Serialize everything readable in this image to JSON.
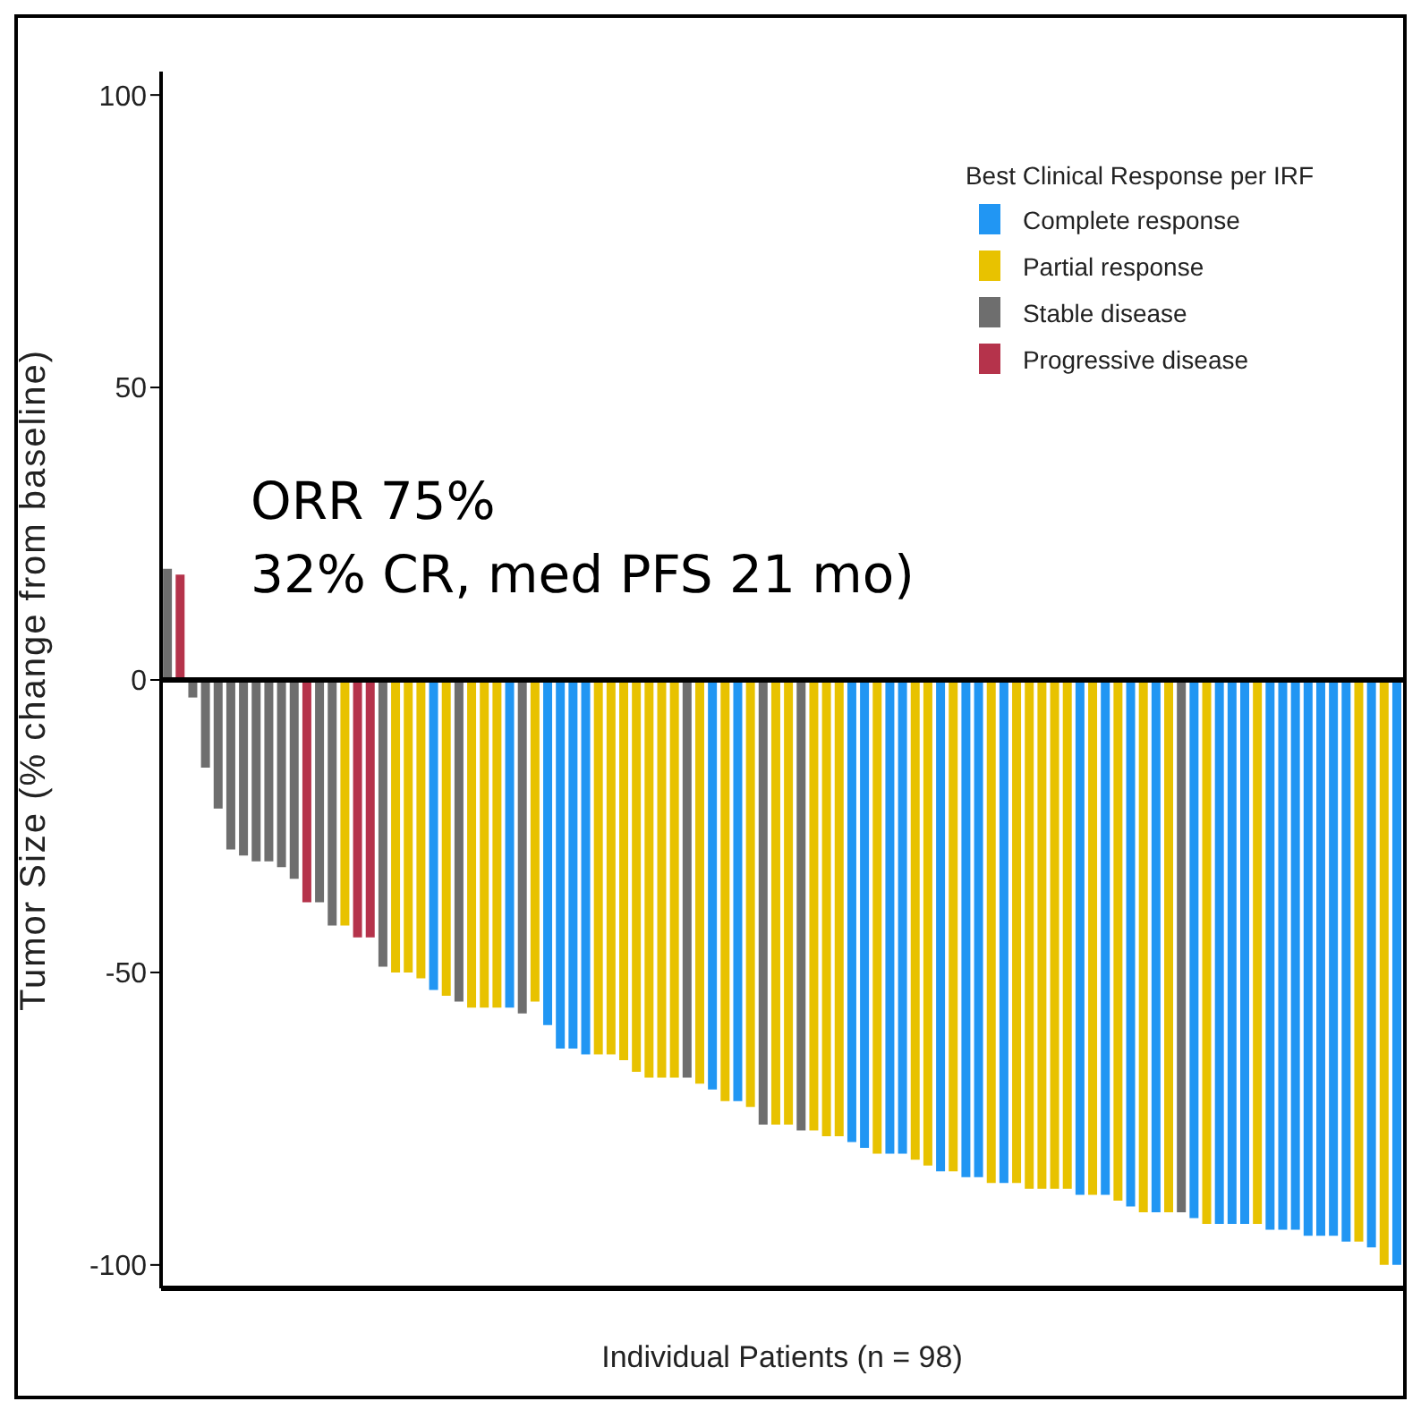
{
  "chart_data": {
    "type": "bar",
    "stacked": true,
    "ylabel": "Tumor Size (% change from baseline)",
    "xlabel": "Individual Patients (n = 98)",
    "legend_title": "Best Clinical Response per IRF",
    "legend": "top right",
    "tick_labels": "y",
    "annotations": [
      "ORR 75%",
      "32% CR, med PFS 21 mo)"
    ],
    "categories": [
      null,
      null,
      null,
      null,
      null,
      null,
      null,
      null,
      null,
      null,
      null,
      null,
      null,
      null,
      null,
      null,
      null,
      null,
      null,
      null,
      null,
      null,
      null,
      null,
      null,
      null,
      null,
      null,
      null,
      null,
      null,
      null,
      null,
      null,
      null,
      null,
      null,
      null,
      null,
      null,
      null,
      null,
      null,
      null,
      null,
      null,
      null,
      null,
      null,
      null,
      null,
      null,
      null,
      null,
      null,
      null,
      null,
      null,
      null,
      null,
      null,
      null,
      null,
      null,
      null,
      null,
      null,
      null,
      null,
      null,
      null,
      null,
      null,
      null,
      null,
      null,
      null,
      null,
      null,
      null,
      null,
      null,
      null,
      null,
      null,
      null,
      null,
      null,
      null,
      null,
      null,
      null,
      null,
      null,
      null,
      null,
      null,
      null
    ],
    "ylim": [
      -104,
      104
    ],
    "yticks": [
      -100,
      -50,
      0,
      50,
      100
    ],
    "ref_lines": [
      {
        "axis": "y",
        "value": 0,
        "color": "#000000"
      }
    ],
    "series": [
      {
        "name": "Complete response",
        "color": "#2196f3",
        "values": [
          null,
          null,
          null,
          null,
          null,
          null,
          null,
          null,
          null,
          null,
          null,
          null,
          null,
          null,
          null,
          null,
          null,
          null,
          null,
          null,
          null,
          -53,
          null,
          null,
          null,
          null,
          null,
          -56,
          null,
          null,
          -59,
          -63,
          -63,
          -64,
          null,
          null,
          null,
          null,
          null,
          null,
          null,
          null,
          null,
          -70,
          null,
          -72,
          null,
          null,
          null,
          null,
          null,
          null,
          null,
          null,
          -79,
          -80,
          null,
          -81,
          -81,
          null,
          null,
          -84,
          null,
          -85,
          -85,
          null,
          -86,
          null,
          null,
          null,
          null,
          null,
          -88,
          null,
          -88,
          null,
          -90,
          null,
          -91,
          null,
          null,
          -92,
          null,
          -93,
          -93,
          -93,
          null,
          -94,
          -94,
          -94,
          -95,
          -95,
          -95,
          -96,
          null,
          -97,
          null,
          -100
        ]
      },
      {
        "name": "Partial response",
        "color": "#e8c200",
        "values": [
          null,
          null,
          null,
          null,
          null,
          null,
          null,
          null,
          null,
          null,
          null,
          null,
          null,
          null,
          -42,
          null,
          null,
          null,
          -50,
          -50,
          -51,
          null,
          -54,
          null,
          -56,
          -56,
          -56,
          null,
          null,
          -55,
          null,
          null,
          null,
          null,
          -64,
          -64,
          -65,
          -67,
          -68,
          -68,
          -68,
          null,
          -69,
          null,
          -72,
          null,
          -73,
          null,
          -76,
          -76,
          null,
          -77,
          -78,
          -78,
          null,
          null,
          -81,
          null,
          null,
          -82,
          -83,
          null,
          -84,
          null,
          null,
          -86,
          null,
          -86,
          -87,
          -87,
          -87,
          -87,
          null,
          -88,
          null,
          -89,
          null,
          -91,
          null,
          -91,
          null,
          null,
          -93,
          null,
          null,
          null,
          -93,
          null,
          null,
          null,
          null,
          null,
          null,
          null,
          -96,
          null,
          -100,
          null
        ]
      },
      {
        "name": "Stable disease",
        "color": "#6e6e6e",
        "values": [
          19,
          null,
          -3,
          -15,
          -22,
          -29,
          -30,
          -31,
          -31,
          -32,
          -34,
          null,
          -38,
          -42,
          null,
          null,
          null,
          -49,
          null,
          null,
          null,
          null,
          null,
          -55,
          null,
          null,
          null,
          null,
          -57,
          null,
          null,
          null,
          null,
          null,
          null,
          null,
          null,
          null,
          null,
          null,
          null,
          -68,
          null,
          null,
          null,
          null,
          null,
          -76,
          null,
          null,
          -77,
          null,
          null,
          null,
          null,
          null,
          null,
          null,
          null,
          null,
          null,
          null,
          null,
          null,
          null,
          null,
          null,
          null,
          null,
          null,
          null,
          null,
          null,
          null,
          null,
          null,
          null,
          null,
          null,
          null,
          -91,
          null,
          null,
          null,
          null,
          null,
          null,
          null,
          null,
          null,
          null,
          null,
          null,
          null,
          null,
          null,
          null,
          null
        ]
      },
      {
        "name": "Progressive disease",
        "color": "#b5334b",
        "values": [
          null,
          18,
          null,
          null,
          null,
          null,
          null,
          null,
          null,
          null,
          null,
          -38,
          null,
          null,
          null,
          -44,
          -44,
          null,
          null,
          null,
          null,
          null,
          null,
          null,
          null,
          null,
          null,
          null,
          null,
          null,
          null,
          null,
          null,
          null,
          null,
          null,
          null,
          null,
          null,
          null,
          null,
          null,
          null,
          null,
          null,
          null,
          null,
          null,
          null,
          null,
          null,
          null,
          null,
          null,
          null,
          null,
          null,
          null,
          null,
          null,
          null,
          null,
          null,
          null,
          null,
          null,
          null,
          null,
          null,
          null,
          null,
          null,
          null,
          null,
          null,
          null,
          null,
          null,
          null,
          null,
          null,
          null,
          null,
          null,
          null,
          null,
          null,
          null,
          null,
          null,
          null,
          null,
          null,
          null,
          null,
          null,
          null,
          null
        ]
      }
    ]
  }
}
